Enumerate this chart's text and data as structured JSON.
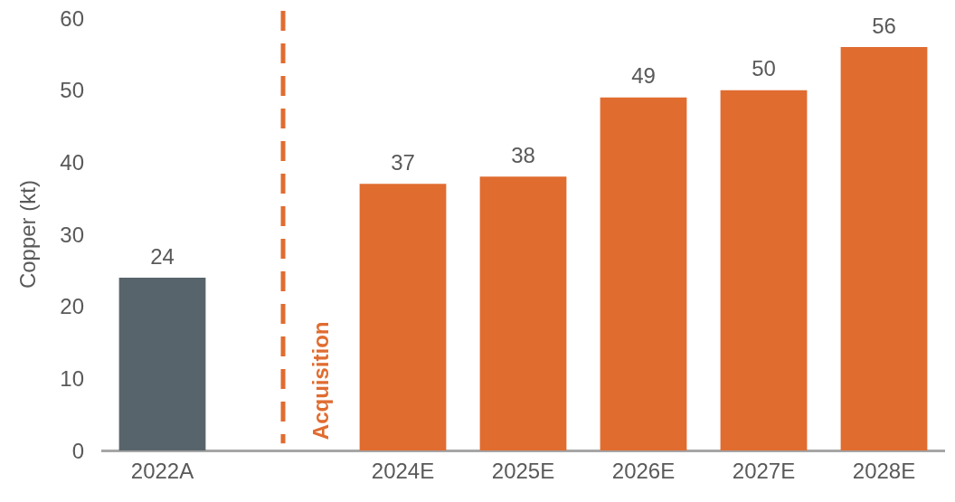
{
  "chart_data": {
    "type": "bar",
    "ylabel": "Copper (kt)",
    "categories": [
      "2022A",
      null,
      "2024E",
      "2025E",
      "2026E",
      "2027E",
      "2028E"
    ],
    "values": [
      24,
      null,
      37,
      38,
      49,
      50,
      56
    ],
    "colors": [
      "#58646c",
      "#e06c30",
      "#e06c30",
      "#e06c30",
      "#e06c30",
      "#e06c30",
      "#e06c30"
    ],
    "ylim": [
      0,
      60
    ],
    "yticks": [
      0,
      10,
      20,
      30,
      40,
      50,
      60
    ],
    "annotations": [
      "Acquisition"
    ],
    "data_labels": true,
    "grid": false,
    "legend": false
  }
}
